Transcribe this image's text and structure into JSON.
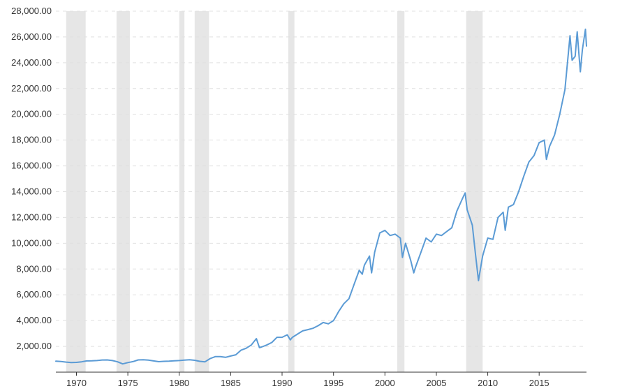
{
  "chart_data": {
    "type": "line",
    "title": "",
    "xlabel": "",
    "ylabel": "",
    "xlim": [
      1968.0,
      2018.1
    ],
    "ylim": [
      0,
      28000
    ],
    "grid": true,
    "y_ticks": [
      2000,
      4000,
      6000,
      8000,
      10000,
      12000,
      14000,
      16000,
      18000,
      20000,
      22000,
      24000,
      26000,
      28000
    ],
    "y_tick_labels": [
      "2,000.00",
      "4,000.00",
      "6,000.00",
      "8,000.00",
      "10,000.00",
      "12,000.00",
      "14,000.00",
      "16,000.00",
      "18,000.00",
      "20,000.00",
      "22,000.00",
      "24,000.00",
      "26,000.00",
      "28,000.00"
    ],
    "x_ticks": [
      1970,
      1975,
      1980,
      1985,
      1990,
      1995,
      2000,
      2005,
      2010,
      2015
    ],
    "x_tick_labels": [
      "1970",
      "1975",
      "1980",
      "1985",
      "1990",
      "1995",
      "2000",
      "2005",
      "2010",
      "2015"
    ],
    "recessions": [
      [
        1969.0,
        1970.9
      ],
      [
        1973.9,
        1975.2
      ],
      [
        1980.0,
        1980.5
      ],
      [
        1981.5,
        1982.9
      ],
      [
        1990.6,
        1991.2
      ],
      [
        2001.2,
        2001.9
      ],
      [
        2007.9,
        2009.5
      ]
    ],
    "colors": {
      "line": "#5b9bd5",
      "recession": "#e6e6e6",
      "grid": "#e0e0e0",
      "axis": "#333333"
    },
    "series": [
      {
        "values": [
          [
            1968.0,
            850
          ],
          [
            1968.5,
            830
          ],
          [
            1969.0,
            780
          ],
          [
            1969.5,
            740
          ],
          [
            1970.0,
            760
          ],
          [
            1970.5,
            800
          ],
          [
            1971.0,
            870
          ],
          [
            1971.5,
            880
          ],
          [
            1972.0,
            900
          ],
          [
            1972.5,
            940
          ],
          [
            1973.0,
            950
          ],
          [
            1973.5,
            900
          ],
          [
            1974.0,
            800
          ],
          [
            1974.5,
            640
          ],
          [
            1975.0,
            740
          ],
          [
            1975.5,
            820
          ],
          [
            1976.0,
            950
          ],
          [
            1976.5,
            960
          ],
          [
            1977.0,
            930
          ],
          [
            1977.5,
            870
          ],
          [
            1978.0,
            810
          ],
          [
            1978.5,
            840
          ],
          [
            1979.0,
            850
          ],
          [
            1979.5,
            880
          ],
          [
            1980.0,
            900
          ],
          [
            1980.5,
            930
          ],
          [
            1981.0,
            960
          ],
          [
            1981.5,
            920
          ],
          [
            1982.0,
            840
          ],
          [
            1982.5,
            800
          ],
          [
            1983.0,
            1050
          ],
          [
            1983.5,
            1200
          ],
          [
            1984.0,
            1200
          ],
          [
            1984.5,
            1150
          ],
          [
            1985.0,
            1250
          ],
          [
            1985.5,
            1350
          ],
          [
            1986.0,
            1700
          ],
          [
            1986.5,
            1850
          ],
          [
            1987.0,
            2100
          ],
          [
            1987.5,
            2600
          ],
          [
            1987.8,
            1900
          ],
          [
            1988.0,
            1950
          ],
          [
            1988.5,
            2100
          ],
          [
            1989.0,
            2300
          ],
          [
            1989.5,
            2700
          ],
          [
            1990.0,
            2700
          ],
          [
            1990.5,
            2900
          ],
          [
            1990.8,
            2500
          ],
          [
            1991.0,
            2700
          ],
          [
            1991.5,
            2950
          ],
          [
            1992.0,
            3200
          ],
          [
            1992.5,
            3300
          ],
          [
            1993.0,
            3400
          ],
          [
            1993.5,
            3600
          ],
          [
            1994.0,
            3850
          ],
          [
            1994.5,
            3750
          ],
          [
            1995.0,
            4000
          ],
          [
            1995.5,
            4700
          ],
          [
            1996.0,
            5300
          ],
          [
            1996.5,
            5700
          ],
          [
            1997.0,
            6800
          ],
          [
            1997.5,
            7900
          ],
          [
            1997.8,
            7600
          ],
          [
            1998.0,
            8300
          ],
          [
            1998.5,
            9000
          ],
          [
            1998.7,
            7700
          ],
          [
            1999.0,
            9300
          ],
          [
            1999.5,
            10800
          ],
          [
            2000.0,
            11000
          ],
          [
            2000.5,
            10600
          ],
          [
            2001.0,
            10700
          ],
          [
            2001.5,
            10400
          ],
          [
            2001.7,
            8900
          ],
          [
            2002.0,
            10000
          ],
          [
            2002.5,
            8700
          ],
          [
            2002.8,
            7700
          ],
          [
            2003.0,
            8200
          ],
          [
            2003.5,
            9300
          ],
          [
            2004.0,
            10400
          ],
          [
            2004.5,
            10100
          ],
          [
            2005.0,
            10700
          ],
          [
            2005.5,
            10600
          ],
          [
            2006.0,
            10900
          ],
          [
            2006.5,
            11200
          ],
          [
            2007.0,
            12500
          ],
          [
            2007.5,
            13400
          ],
          [
            2007.8,
            13900
          ],
          [
            2008.0,
            12600
          ],
          [
            2008.5,
            11400
          ],
          [
            2008.8,
            9200
          ],
          [
            2009.1,
            7100
          ],
          [
            2009.5,
            9000
          ],
          [
            2010.0,
            10400
          ],
          [
            2010.5,
            10300
          ],
          [
            2011.0,
            12000
          ],
          [
            2011.5,
            12400
          ],
          [
            2011.7,
            11000
          ],
          [
            2012.0,
            12800
          ],
          [
            2012.5,
            13000
          ],
          [
            2013.0,
            14000
          ],
          [
            2013.5,
            15200
          ],
          [
            2014.0,
            16300
          ],
          [
            2014.5,
            16800
          ],
          [
            2015.0,
            17800
          ],
          [
            2015.5,
            18000
          ],
          [
            2015.7,
            16500
          ],
          [
            2016.0,
            17500
          ],
          [
            2016.5,
            18400
          ],
          [
            2017.0,
            20000
          ],
          [
            2017.5,
            21900
          ],
          [
            2018.0,
            26100
          ],
          [
            2018.2,
            24200
          ],
          [
            2018.5,
            24500
          ],
          [
            2018.7,
            26400
          ],
          [
            2018.9,
            24300
          ],
          [
            2019.0,
            23300
          ],
          [
            2019.2,
            25000
          ],
          [
            2019.5,
            26600
          ],
          [
            2019.6,
            25300
          ]
        ]
      }
    ]
  }
}
